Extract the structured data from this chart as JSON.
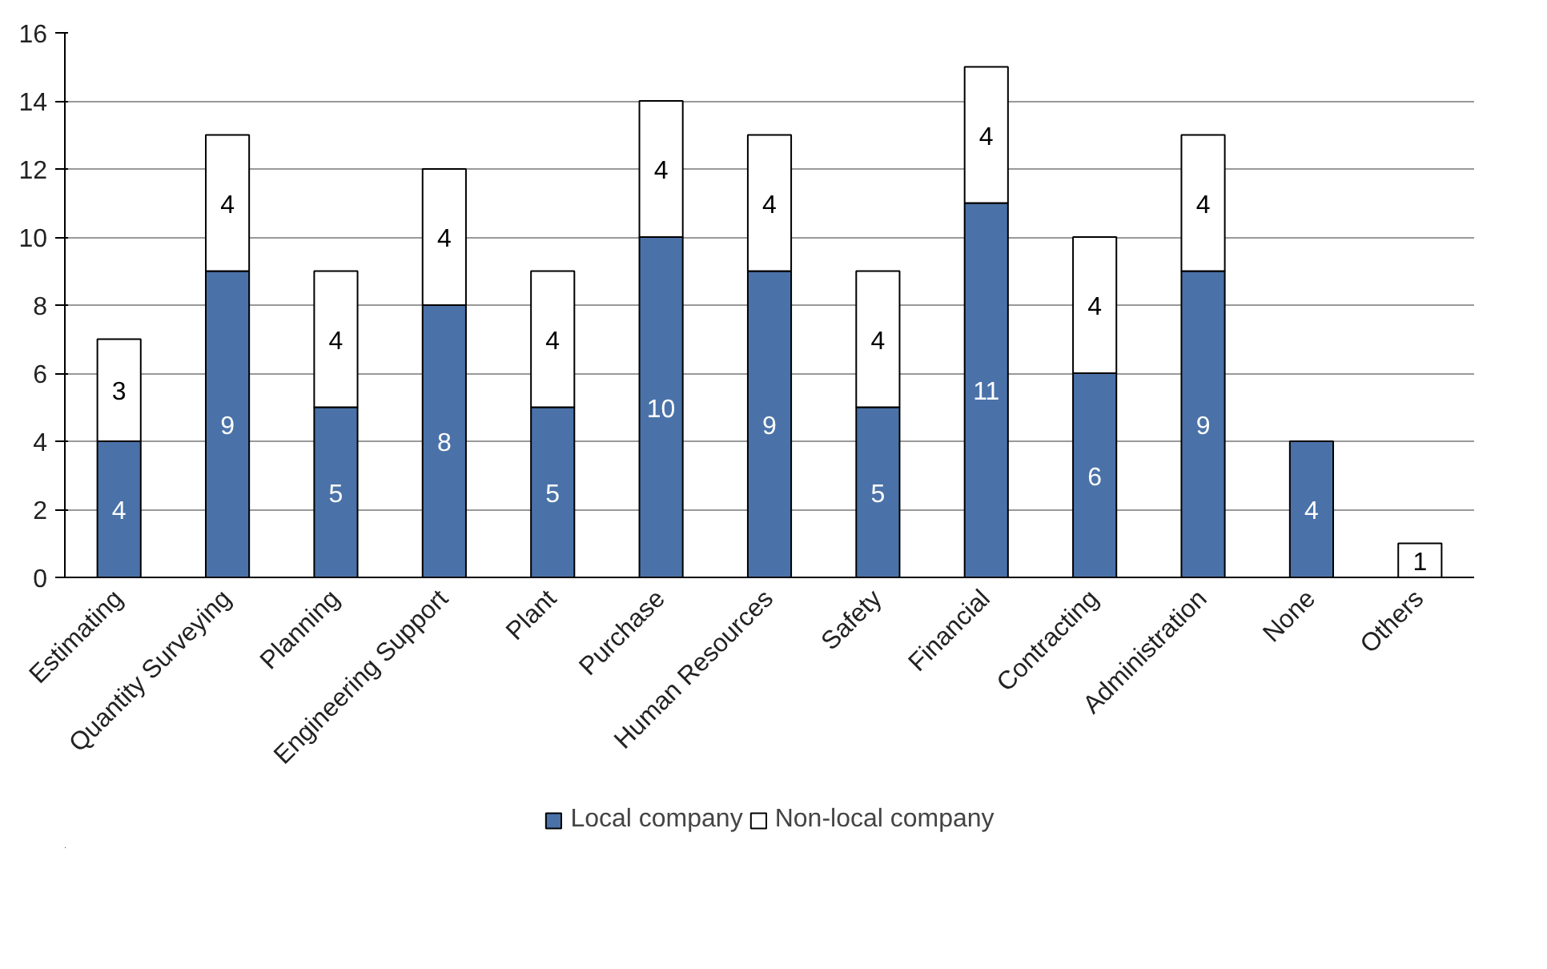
{
  "chart_data": {
    "type": "bar",
    "stacked": true,
    "categories": [
      "Estimating",
      "Quantity Surveying",
      "Planning",
      "Engineering Support",
      "Plant",
      "Purchase",
      "Human Resources",
      "Safety",
      "Financial",
      "Contracting",
      "Administration",
      "None",
      "Others"
    ],
    "series": [
      {
        "name": "Local company",
        "color": "#4a72a8",
        "values": [
          4,
          9,
          5,
          8,
          5,
          10,
          9,
          5,
          11,
          6,
          9,
          4,
          null
        ]
      },
      {
        "name": "Non-local company",
        "color": "#ffffff",
        "values": [
          3,
          4,
          4,
          4,
          4,
          4,
          4,
          4,
          4,
          4,
          4,
          null,
          1
        ]
      }
    ],
    "ylim": [
      0,
      16
    ],
    "yticks": [
      0,
      2,
      4,
      6,
      8,
      10,
      12,
      14,
      16
    ],
    "grid": "y",
    "legend": "bottom",
    "data_labels": true
  }
}
